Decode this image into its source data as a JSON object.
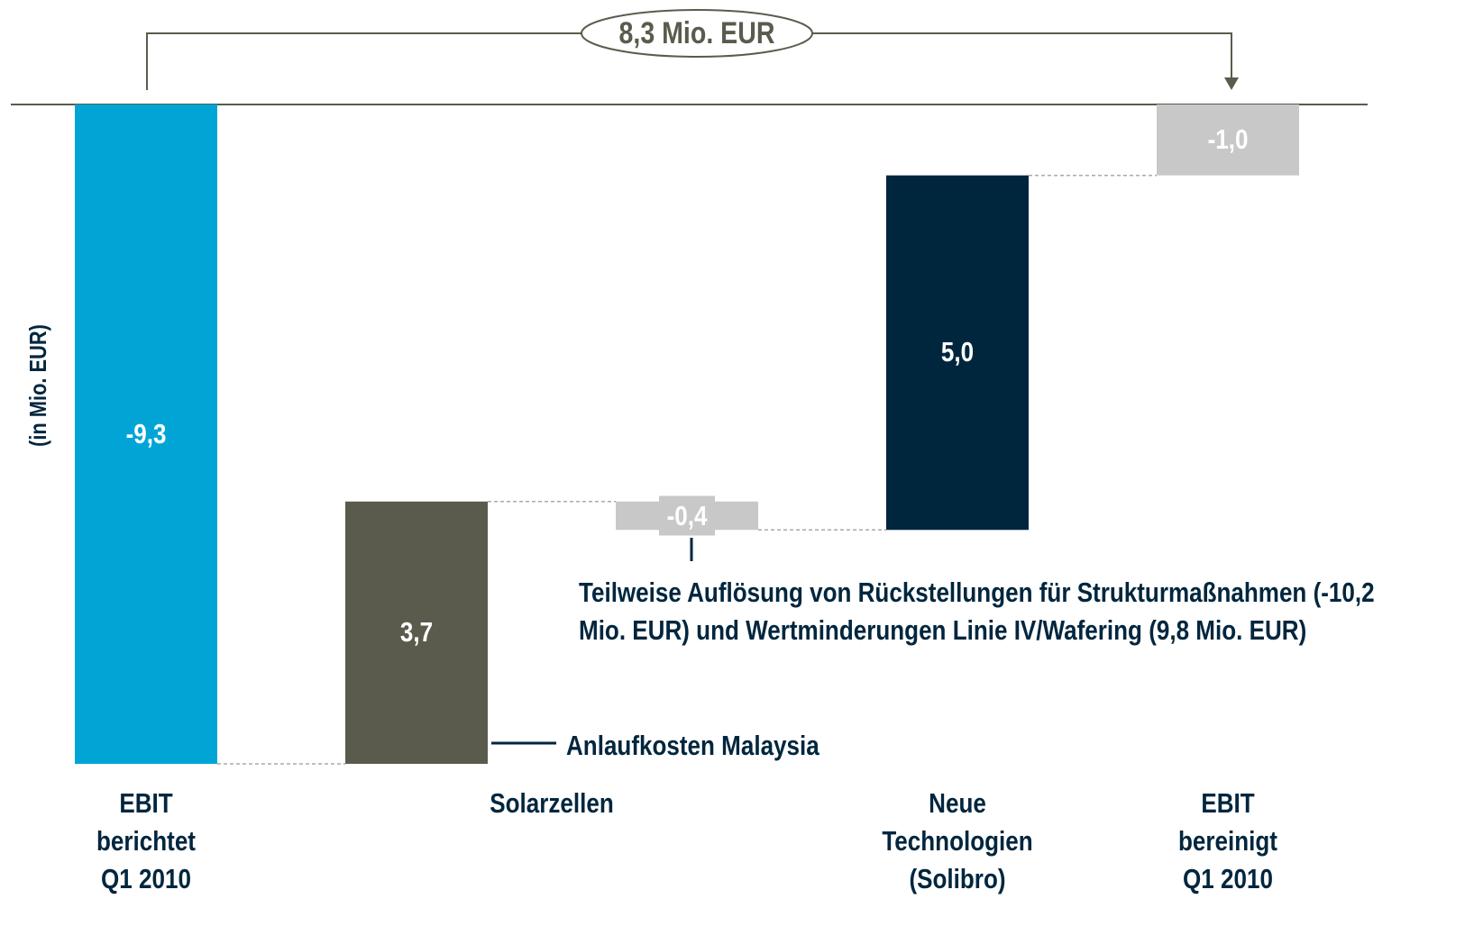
{
  "chart_data": {
    "type": "waterfall",
    "y_label": "(in Mio. EUR)",
    "categories": [
      "EBIT\nberichtet\nQ1 2010",
      "Solarzellen",
      null,
      "Neue\nTechnologien\n(Solibro)",
      "EBIT\nbereinigt\nQ1 2010"
    ],
    "values": [
      -9.3,
      3.7,
      -0.4,
      5.0,
      -1.0
    ],
    "value_labels": [
      "-9,3",
      "3,7",
      "-0,4",
      "5,0",
      "-1,0"
    ],
    "totals": [
      true,
      false,
      false,
      false,
      true
    ],
    "colors": [
      "#00a5d6",
      "#5b5b4d",
      "#c8c8c8",
      "#00263e",
      "#c8c8c8"
    ],
    "ylim": [
      -9.3,
      0
    ],
    "annotations": [
      "8,3 Mio. EUR",
      "Anlaufkosten Malaysia",
      "Teilweise Auflösung von Rückstellungen für Strukturmaßnahmen (-10,2 Mio. EUR) und Wertminderungen Linie IV/Wafering (9,8 Mio. EUR)"
    ]
  }
}
